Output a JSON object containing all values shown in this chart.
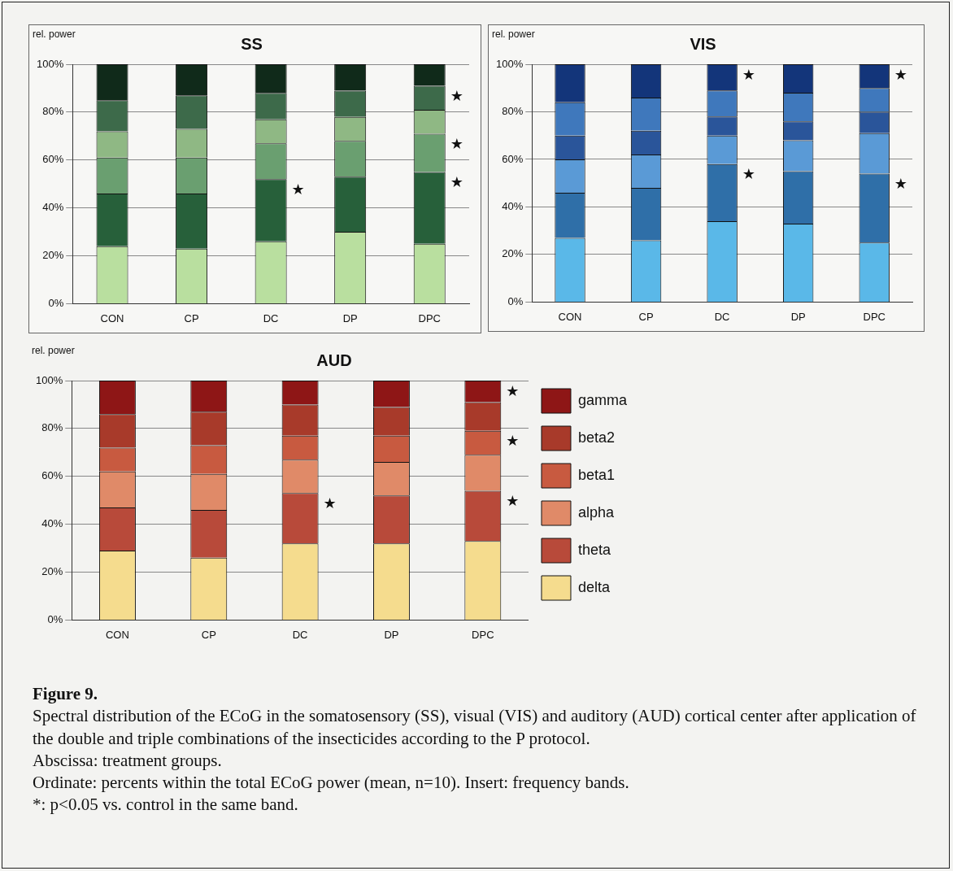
{
  "chart_data": [
    {
      "type": "bar",
      "title": "SS",
      "ylabel": "rel. power",
      "categories": [
        "CON",
        "CP",
        "DC",
        "DP",
        "DPC"
      ],
      "stacked": true,
      "ylim": [
        0,
        100
      ],
      "yticks": [
        {
          "value": 0,
          "label": "0%"
        },
        {
          "value": 20,
          "label": "20%"
        },
        {
          "value": 40,
          "label": "40%"
        },
        {
          "value": 60,
          "label": "60%"
        },
        {
          "value": 80,
          "label": "80%"
        },
        {
          "value": 100,
          "label": "100%"
        }
      ],
      "grid": "y",
      "legend": false,
      "series": [
        {
          "color": "#b9df9f",
          "values": [
            24,
            23,
            26,
            30,
            25
          ]
        },
        {
          "color": "#27603a",
          "values": [
            22,
            23,
            26,
            23,
            30
          ]
        },
        {
          "color": "#6a9f70",
          "values": [
            15,
            15,
            15,
            15,
            16
          ]
        },
        {
          "color": "#8fb884",
          "values": [
            11,
            12,
            10,
            10,
            10
          ]
        },
        {
          "color": "#3d6a4a",
          "values": [
            13,
            14,
            11,
            11,
            10
          ]
        },
        {
          "color": "#102a1a",
          "values": [
            15,
            13,
            12,
            11,
            9
          ]
        }
      ],
      "annotations": [
        {
          "text": "★",
          "x": "DC",
          "y": 52
        },
        {
          "text": "★",
          "x": "DPC",
          "y": 91
        },
        {
          "text": "★",
          "x": "DPC",
          "y": 71
        },
        {
          "text": "★",
          "x": "DPC",
          "y": 55
        }
      ]
    },
    {
      "type": "bar",
      "title": "VIS",
      "ylabel": "rel. power",
      "categories": [
        "CON",
        "CP",
        "DC",
        "DP",
        "DPC"
      ],
      "stacked": true,
      "ylim": [
        0,
        100
      ],
      "yticks": [
        {
          "value": 0,
          "label": "0%"
        },
        {
          "value": 20,
          "label": "20%"
        },
        {
          "value": 40,
          "label": "40%"
        },
        {
          "value": 60,
          "label": "60%"
        },
        {
          "value": 80,
          "label": "80%"
        },
        {
          "value": 100,
          "label": "100%"
        }
      ],
      "grid": "y",
      "legend": false,
      "series": [
        {
          "color": "#5ab8e8",
          "values": [
            27,
            26,
            34,
            33,
            25
          ]
        },
        {
          "color": "#2f6fa8",
          "values": [
            19,
            22,
            24,
            22,
            29
          ]
        },
        {
          "color": "#5a9ad6",
          "values": [
            14,
            14,
            12,
            13,
            17
          ]
        },
        {
          "color": "#2a559a",
          "values": [
            10,
            10,
            8,
            8,
            9
          ]
        },
        {
          "color": "#3f78bc",
          "values": [
            14,
            14,
            11,
            12,
            10
          ]
        },
        {
          "color": "#13357a",
          "values": [
            16,
            14,
            11,
            12,
            10
          ]
        }
      ],
      "annotations": [
        {
          "text": "★",
          "x": "DC",
          "y": 100
        },
        {
          "text": "★",
          "x": "DC",
          "y": 58
        },
        {
          "text": "★",
          "x": "DPC",
          "y": 100
        },
        {
          "text": "★",
          "x": "DPC",
          "y": 54
        }
      ]
    },
    {
      "type": "bar",
      "title": "AUD",
      "ylabel": "rel. power",
      "categories": [
        "CON",
        "CP",
        "DC",
        "DP",
        "DPC"
      ],
      "stacked": true,
      "ylim": [
        0,
        100
      ],
      "yticks": [
        {
          "value": 0,
          "label": "0%"
        },
        {
          "value": 20,
          "label": "20%"
        },
        {
          "value": 40,
          "label": "40%"
        },
        {
          "value": 60,
          "label": "60%"
        },
        {
          "value": 80,
          "label": "80%"
        },
        {
          "value": 100,
          "label": "100%"
        }
      ],
      "grid": "y",
      "legend": "right",
      "series": [
        {
          "name": "delta",
          "color": "#f5dc8e",
          "values": [
            29,
            26,
            32,
            32,
            33
          ]
        },
        {
          "name": "theta",
          "color": "#b84a3a",
          "values": [
            18,
            20,
            21,
            20,
            21
          ]
        },
        {
          "name": "alpha",
          "color": "#e08a68",
          "values": [
            15,
            15,
            14,
            14,
            15
          ]
        },
        {
          "name": "beta1",
          "color": "#c85a40",
          "values": [
            10,
            12,
            10,
            11,
            10
          ]
        },
        {
          "name": "beta2",
          "color": "#a83a2a",
          "values": [
            14,
            14,
            13,
            12,
            12
          ]
        },
        {
          "name": "gamma",
          "color": "#8e1616",
          "values": [
            14,
            13,
            10,
            11,
            9
          ]
        }
      ],
      "annotations": [
        {
          "text": "★",
          "x": "DC",
          "y": 53
        },
        {
          "text": "★",
          "x": "DPC",
          "y": 100
        },
        {
          "text": "★",
          "x": "DPC",
          "y": 79
        },
        {
          "text": "★",
          "x": "DPC",
          "y": 54
        }
      ]
    },
    {
      "type": "other",
      "title": "Figure 9.",
      "annotations": [
        "Spectral distribution of the ECoG in the somatosensory (SS), visual (VIS) and auditory (AUD) cortical center after application of the double and triple combinations of the insecticides according to the P protocol.",
        "Abscissa: treatment groups.",
        "Ordinate: percents within the total ECoG power (mean, n=10). Insert: frequency bands.",
        "*: p<0.05 vs. control in the same band."
      ]
    }
  ]
}
